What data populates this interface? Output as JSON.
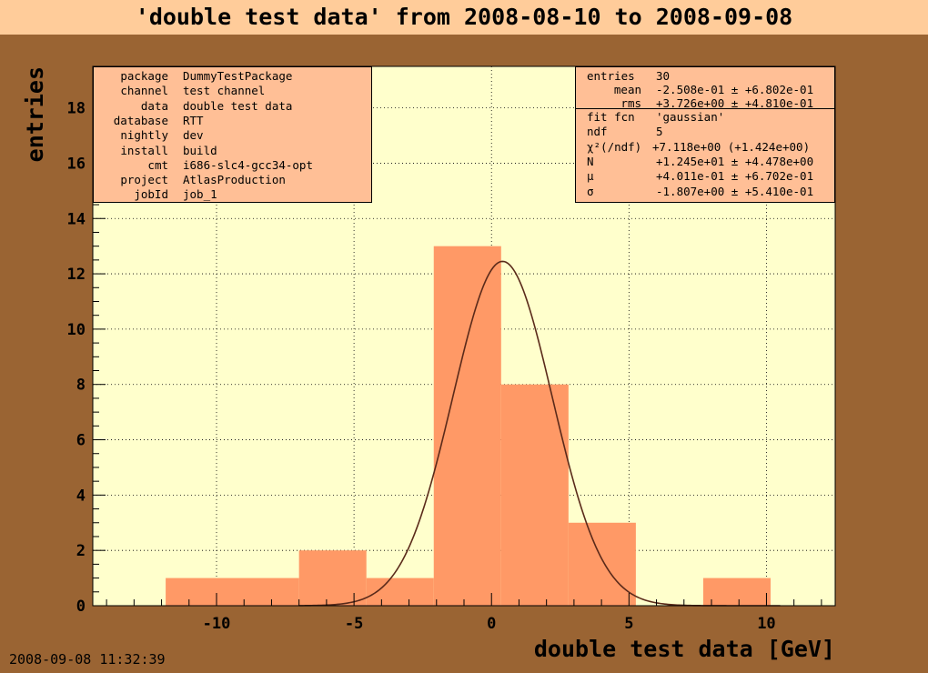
{
  "title": "'double test data' from 2008-08-10 to 2008-09-08",
  "timestamp": "2008-09-08 11:32:39",
  "info_box": [
    {
      "key": "package",
      "value": "DummyTestPackage"
    },
    {
      "key": "channel",
      "value": "test channel"
    },
    {
      "key": "data",
      "value": "double test data"
    },
    {
      "key": "database",
      "value": "RTT"
    },
    {
      "key": "nightly",
      "value": "dev"
    },
    {
      "key": "install",
      "value": "build"
    },
    {
      "key": "cmt",
      "value": "i686-slc4-gcc34-opt"
    },
    {
      "key": "project",
      "value": "AtlasProduction"
    },
    {
      "key": "jobId",
      "value": "job_1"
    }
  ],
  "stats_box": {
    "entries": {
      "key": "entries",
      "value": "30"
    },
    "mean": {
      "key": "mean",
      "value": "-2.508e-01 ± +6.802e-01"
    },
    "rms": {
      "key": "rms",
      "value": "+3.726e+00 ± +4.810e-01"
    }
  },
  "fit_box": [
    {
      "key": "fit fcn",
      "value": "'gaussian'"
    },
    {
      "key": "ndf",
      "value": "5"
    },
    {
      "key": "χ²(/ndf)",
      "value": "+7.118e+00 (+1.424e+00)"
    },
    {
      "key": "N",
      "value": "+1.245e+01 ± +4.478e+00"
    },
    {
      "key": "μ",
      "value": "+4.011e-01 ± +6.702e-01"
    },
    {
      "key": "σ",
      "value": "-1.807e+00 ± +5.410e-01"
    }
  ],
  "colors": {
    "frame": "#9a6433",
    "plot_bg": "#ffffcc",
    "bars": "#ff9966",
    "curve": "#5a2a1a",
    "box": "#ffbf96",
    "title_bg": "#ffcc9a"
  },
  "chart_data": {
    "type": "bar",
    "title": "'double test data' from 2008-08-10 to 2008-09-08",
    "xlabel": "double test data [GeV]",
    "ylabel": "entries",
    "xlim": [
      -14.5,
      12.5
    ],
    "ylim": [
      0,
      19.5
    ],
    "x_ticks": [
      -10,
      -5,
      0,
      5,
      10
    ],
    "y_ticks": [
      0,
      2,
      4,
      6,
      8,
      10,
      12,
      14,
      16,
      18
    ],
    "grid": true,
    "bins": [
      {
        "x0": -11.85,
        "x1": -7.0,
        "value": 1
      },
      {
        "x0": -7.0,
        "x1": -4.55,
        "value": 2
      },
      {
        "x0": -4.55,
        "x1": -2.1,
        "value": 1
      },
      {
        "x0": -2.1,
        "x1": 0.35,
        "value": 13
      },
      {
        "x0": 0.35,
        "x1": 2.8,
        "value": 8
      },
      {
        "x0": 2.8,
        "x1": 5.25,
        "value": 3
      },
      {
        "x0": 5.25,
        "x1": 7.7,
        "value": 0
      },
      {
        "x0": 7.7,
        "x1": 10.15,
        "value": 1
      }
    ],
    "fit": {
      "function": "gaussian",
      "N": 12.45,
      "mu": 0.4011,
      "sigma": 1.807
    }
  }
}
